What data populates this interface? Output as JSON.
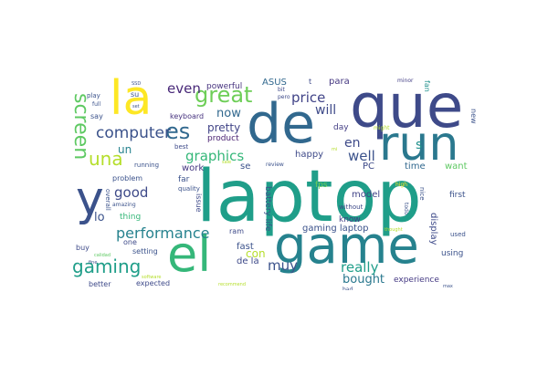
{
  "word_cloud": {
    "words": [
      {
        "text": "laptop",
        "color": "#1f9e89"
      },
      {
        "text": "que",
        "color": "#3e4a89"
      },
      {
        "text": "de",
        "color": "#31688e"
      },
      {
        "text": "game",
        "color": "#26828e"
      },
      {
        "text": "run",
        "color": "#2a788e"
      },
      {
        "text": "el",
        "color": "#35b779"
      },
      {
        "text": "la",
        "color": "#fde725"
      },
      {
        "text": "y",
        "color": "#3b528b"
      },
      {
        "text": "gaming",
        "color": "#1f9e89"
      },
      {
        "text": "great",
        "color": "#6ece58"
      },
      {
        "text": "es",
        "color": "#31688e"
      },
      {
        "text": "una",
        "color": "#b5de2b"
      },
      {
        "text": "screen",
        "color": "#5ec962"
      },
      {
        "text": "computer",
        "color": "#3b528b"
      },
      {
        "text": "performance",
        "color": "#26828e"
      },
      {
        "text": "even",
        "color": "#482878"
      },
      {
        "text": "graphics",
        "color": "#35b779"
      },
      {
        "text": "price",
        "color": "#404387"
      },
      {
        "text": "good",
        "color": "#3e4a89"
      },
      {
        "text": "really",
        "color": "#1f9e89"
      },
      {
        "text": "muy",
        "color": "#3b528b"
      },
      {
        "text": "now",
        "color": "#31688e"
      },
      {
        "text": "will",
        "color": "#3e4a89"
      },
      {
        "text": "en",
        "color": "#3e4a89"
      },
      {
        "text": "well",
        "color": "#3b528b"
      },
      {
        "text": "bought",
        "color": "#2a788e"
      },
      {
        "text": "s",
        "color": "#21918c"
      },
      {
        "text": "con",
        "color": "#b5de2b"
      },
      {
        "text": "un",
        "color": "#26828e"
      },
      {
        "text": "lo",
        "color": "#3b528b"
      },
      {
        "text": "pretty",
        "color": "#414487"
      },
      {
        "text": "right",
        "color": "#2a788e"
      },
      {
        "text": "gaming laptop",
        "color": "#3b528b"
      },
      {
        "text": "de la",
        "color": "#3e4a89"
      },
      {
        "text": "fast",
        "color": "#3b528b"
      },
      {
        "text": "work",
        "color": "#453781"
      },
      {
        "text": "model",
        "color": "#404387"
      },
      {
        "text": "para",
        "color": "#453781"
      },
      {
        "text": "time",
        "color": "#31688e"
      },
      {
        "text": "PC",
        "color": "#3e4a89"
      },
      {
        "text": "se",
        "color": "#3b528b"
      },
      {
        "text": "happy",
        "color": "#3e4a89"
      },
      {
        "text": "fps",
        "color": "#6ece58"
      },
      {
        "text": "want",
        "color": "#5ec962"
      },
      {
        "text": "display",
        "color": "#3e4a89"
      },
      {
        "text": "know",
        "color": "#433e85"
      },
      {
        "text": "day",
        "color": "#433e85"
      },
      {
        "text": "product",
        "color": "#481f70"
      },
      {
        "text": "experience",
        "color": "#443983"
      },
      {
        "text": "far",
        "color": "#3b528b"
      },
      {
        "text": "ASUS",
        "color": "#31688e"
      },
      {
        "text": "powerful",
        "color": "#46327e"
      },
      {
        "text": "keyboard",
        "color": "#46327e"
      },
      {
        "text": "using",
        "color": "#3b528b"
      },
      {
        "text": "first",
        "color": "#3b528b"
      },
      {
        "text": "battery life",
        "color": "#3b528b"
      },
      {
        "text": "thing",
        "color": "#35b779"
      },
      {
        "text": "one",
        "color": "#3e4a89"
      },
      {
        "text": "buy",
        "color": "#3e4a89"
      },
      {
        "text": "expected",
        "color": "#3e4a89"
      },
      {
        "text": "better",
        "color": "#3e4a89"
      },
      {
        "text": "problem",
        "color": "#3b528b"
      },
      {
        "text": "overall",
        "color": "#3b528b"
      },
      {
        "text": "setting",
        "color": "#3b528b"
      },
      {
        "text": "issue",
        "color": "#3e4a89"
      },
      {
        "text": "ram",
        "color": "#3e4a89"
      },
      {
        "text": "quality",
        "color": "#3b528b"
      },
      {
        "text": "running",
        "color": "#3b528b"
      },
      {
        "text": "best",
        "color": "#3e4a89"
      },
      {
        "text": "without",
        "color": "#3e4a89"
      },
      {
        "text": "nice",
        "color": "#3b528b"
      },
      {
        "text": "todo",
        "color": "#3b528b"
      },
      {
        "text": "used",
        "color": "#3b528b"
      },
      {
        "text": "new",
        "color": "#3b528b"
      },
      {
        "text": "everything",
        "color": "#3b528b"
      },
      {
        "text": "minor",
        "color": "#433e85"
      },
      {
        "text": "fan",
        "color": "#21918c"
      },
      {
        "text": "might",
        "color": "#b5de2b"
      },
      {
        "text": "bit",
        "color": "#3e4a89"
      },
      {
        "text": "pero",
        "color": "#3e4a89"
      },
      {
        "text": "t",
        "color": "#3e4a89"
      },
      {
        "text": "play",
        "color": "#3b528b"
      },
      {
        "text": "full",
        "color": "#3b528b"
      },
      {
        "text": "say",
        "color": "#3b528b"
      },
      {
        "text": "su",
        "color": "#3b528b"
      },
      {
        "text": "SSD",
        "color": "#3b528b"
      },
      {
        "text": "set",
        "color": "#3b528b"
      },
      {
        "text": "review",
        "color": "#3b528b"
      },
      {
        "text": "mi",
        "color": "#b5de2b"
      },
      {
        "text": "high",
        "color": "#fde725"
      },
      {
        "text": "amazing",
        "color": "#3b528b"
      },
      {
        "text": "fine",
        "color": "#3b528b"
      },
      {
        "text": "calidad",
        "color": "#5ec962"
      },
      {
        "text": "software",
        "color": "#b5de2b"
      },
      {
        "text": "recommend",
        "color": "#b5de2b"
      },
      {
        "text": "sale",
        "color": "#b5de2b"
      },
      {
        "text": "bad",
        "color": "#3b528b"
      },
      {
        "text": "max",
        "color": "#3b528b"
      },
      {
        "text": "thought",
        "color": "#b5de2b"
      }
    ]
  }
}
